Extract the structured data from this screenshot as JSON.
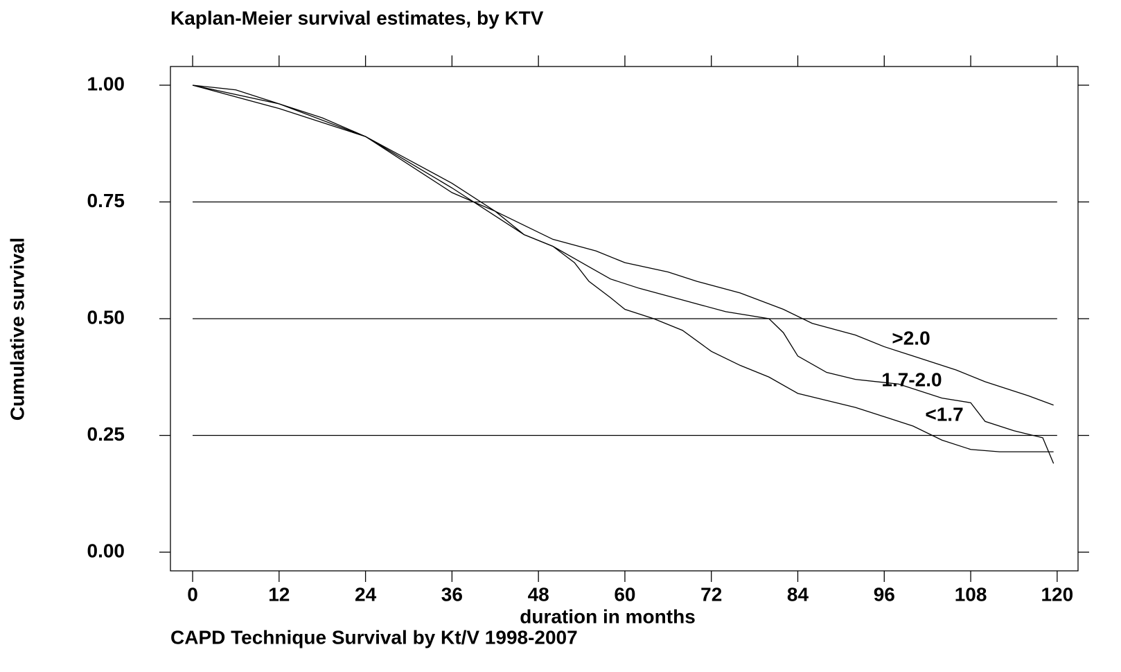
{
  "chart_data": {
    "type": "line",
    "title": "Kaplan-Meier survival estimates, by KTV",
    "caption": "CAPD Technique Survival by Kt/V 1998-2007",
    "x_label": "duration in months",
    "y_label": "Cumulative survival",
    "xlim": [
      -3.08,
      122.9
    ],
    "ylim": [
      -0.04,
      1.04
    ],
    "xticks": [
      0,
      12,
      24,
      36,
      48,
      60,
      72,
      84,
      96,
      108,
      120
    ],
    "yticks": [
      {
        "value": 0,
        "label": "0.00"
      },
      {
        "value": 0.25,
        "label": "0.25"
      },
      {
        "value": 0.5,
        "label": "0.50"
      },
      {
        "value": 0.75,
        "label": "0.75"
      },
      {
        "value": 1,
        "label": "1.00"
      }
    ],
    "grid": true,
    "series": [
      {
        "name": ">2.0",
        "color": "#000000",
        "x": [
          0,
          6,
          12,
          18,
          24,
          30,
          36,
          42,
          46,
          50,
          56,
          60,
          66,
          70,
          76,
          82,
          86,
          92,
          96,
          100,
          106,
          110,
          116,
          119.5
        ],
        "values": [
          1,
          0.99,
          0.96,
          0.93,
          0.89,
          0.84,
          0.79,
          0.73,
          0.7,
          0.67,
          0.645,
          0.62,
          0.6,
          0.58,
          0.555,
          0.52,
          0.49,
          0.465,
          0.44,
          0.42,
          0.39,
          0.365,
          0.335,
          0.315
        ]
      },
      {
        "name": "1.7-2.0",
        "color": "#000000",
        "x": [
          0,
          12,
          24,
          36,
          42,
          46,
          50,
          54,
          58,
          62,
          68,
          74,
          80,
          82,
          84,
          88,
          92,
          98,
          104,
          108,
          110,
          114,
          118,
          119.5
        ],
        "values": [
          1,
          0.96,
          0.89,
          0.78,
          0.72,
          0.68,
          0.655,
          0.62,
          0.585,
          0.565,
          0.54,
          0.515,
          0.5,
          0.47,
          0.42,
          0.385,
          0.37,
          0.36,
          0.33,
          0.32,
          0.28,
          0.26,
          0.245,
          0.19
        ]
      },
      {
        "name": "<1.7",
        "color": "#000000",
        "x": [
          0,
          12,
          24,
          36,
          42,
          46,
          50,
          53,
          55,
          58,
          60,
          64,
          68,
          72,
          76,
          80,
          84,
          88,
          92,
          96,
          100,
          104,
          108,
          112,
          119.5
        ],
        "values": [
          1,
          0.95,
          0.89,
          0.77,
          0.73,
          0.68,
          0.655,
          0.62,
          0.58,
          0.545,
          0.52,
          0.5,
          0.475,
          0.43,
          0.4,
          0.375,
          0.34,
          0.325,
          0.31,
          0.29,
          0.27,
          0.24,
          0.22,
          0.215,
          0.215
        ]
      }
    ]
  }
}
